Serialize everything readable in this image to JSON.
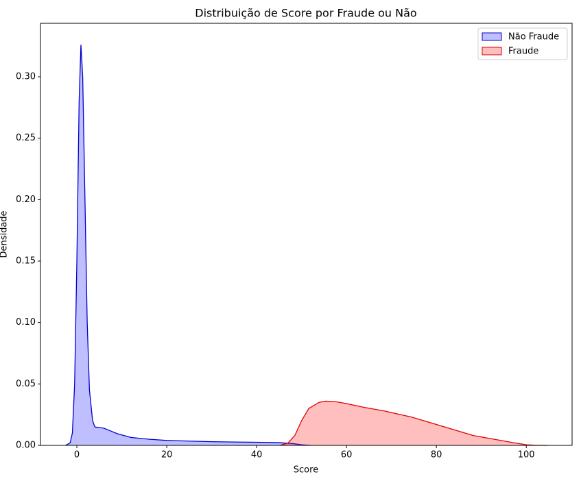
{
  "chart_data": {
    "type": "kde",
    "title": "Distribuição de Score por Fraude ou Não",
    "x_label": "Score",
    "y_label": "Densidade",
    "xlim": [
      -8.1,
      110.2
    ],
    "ylim": [
      0,
      0.3435
    ],
    "xticks": [
      0,
      20,
      40,
      60,
      80,
      100
    ],
    "yticks": [
      {
        "value": 0,
        "label": "0.00"
      },
      {
        "value": 0.05,
        "label": "0.05"
      },
      {
        "value": 0.1,
        "label": "0.10"
      },
      {
        "value": 0.15,
        "label": "0.15"
      },
      {
        "value": 0.2,
        "label": "0.20"
      },
      {
        "value": 0.25,
        "label": "0.25"
      },
      {
        "value": 0.3,
        "label": "0.30"
      }
    ],
    "legend": "upper right",
    "series": [
      {
        "name": "Não Fraude",
        "color": "#0000cc",
        "fill": "rgba(0,0,255,0.25)",
        "x": [
          -2.5,
          -1.5,
          -1,
          -0.5,
          0,
          0.5,
          0.9,
          1.3,
          1.8,
          2.3,
          2.8,
          3.5,
          4,
          5,
          6,
          7,
          9,
          12,
          16,
          20,
          25,
          30,
          35,
          40,
          45,
          48,
          50,
          52
        ],
        "values": [
          0,
          0.002,
          0.01,
          0.05,
          0.15,
          0.28,
          0.326,
          0.3,
          0.2,
          0.1,
          0.045,
          0.02,
          0.015,
          0.0145,
          0.014,
          0.0125,
          0.0095,
          0.0065,
          0.005,
          0.004,
          0.0035,
          0.003,
          0.0027,
          0.0025,
          0.0022,
          0.0015,
          0.0005,
          0
        ]
      },
      {
        "name": "Fraude",
        "color": "#dd0000",
        "fill": "rgba(255,0,0,0.25)",
        "x": [
          45.2,
          47,
          48.5,
          50,
          51.6,
          53.9,
          55.4,
          57.7,
          60,
          63.8,
          68.4,
          74.5,
          80,
          83.7,
          88.2,
          92.8,
          97.4,
          100,
          102,
          104.7
        ],
        "values": [
          0,
          0.002,
          0.008,
          0.02,
          0.03,
          0.035,
          0.036,
          0.0355,
          0.034,
          0.031,
          0.028,
          0.023,
          0.017,
          0.013,
          0.008,
          0.005,
          0.002,
          0.0005,
          0.0001,
          0
        ]
      }
    ]
  }
}
